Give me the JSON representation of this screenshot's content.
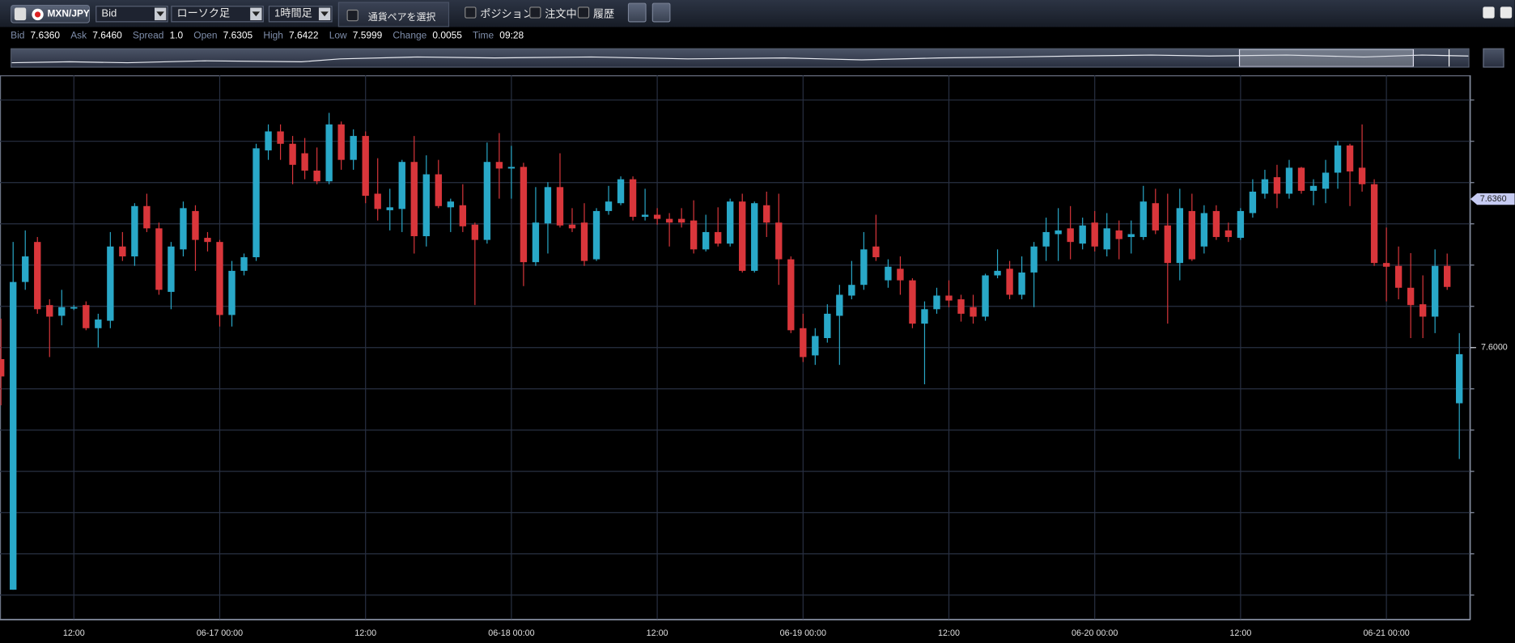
{
  "toolbar": {
    "pair": "MXN/JPY",
    "price_type": "Bid",
    "chart_type": "ローソク足",
    "period": "1時間足",
    "select_pair": "通貨ペアを選択",
    "checkboxes": [
      "ポジション",
      "注文中",
      "履歴"
    ]
  },
  "quote": [
    {
      "label": "Bid",
      "value": "7.6360"
    },
    {
      "label": "Ask",
      "value": "7.6460"
    },
    {
      "label": "Spread",
      "value": "1.0"
    },
    {
      "label": "Open",
      "value": "7.6305"
    },
    {
      "label": "High",
      "value": "7.6422"
    },
    {
      "label": "Low",
      "value": "7.5999"
    },
    {
      "label": "Change",
      "value": "0.0055"
    },
    {
      "label": "Time",
      "value": "09:28"
    }
  ],
  "chart_data": {
    "type": "candlestick",
    "up_color": "#29a8c8",
    "down_color": "#d9363b",
    "categories": [
      null,
      null,
      null,
      null,
      null,
      null,
      "12:00",
      null,
      null,
      null,
      null,
      null,
      null,
      null,
      null,
      null,
      null,
      null,
      "06-17 00:00",
      null,
      null,
      null,
      null,
      null,
      null,
      null,
      null,
      null,
      null,
      null,
      "12:00",
      null,
      null,
      null,
      null,
      null,
      null,
      null,
      null,
      null,
      null,
      null,
      "06-18 00:00",
      null,
      null,
      null,
      null,
      null,
      null,
      null,
      null,
      null,
      null,
      null,
      "12:00",
      null,
      null,
      null,
      null,
      null,
      null,
      null,
      null,
      null,
      null,
      null,
      "06-19 00:00",
      null,
      null,
      null,
      null,
      null,
      null,
      null,
      null,
      null,
      null,
      null,
      "12:00",
      null,
      null,
      null,
      null,
      null,
      null,
      null,
      null,
      null,
      null,
      null,
      "06-20 00:00",
      null,
      null,
      null,
      null,
      null,
      null,
      null,
      null,
      null,
      null,
      null,
      "12:00",
      null,
      null,
      null,
      null,
      null,
      null,
      null,
      null,
      null,
      null,
      null,
      "06-21 00:00",
      null,
      null,
      null,
      null,
      null,
      null
    ],
    "open": [
      7.5972,
      7.5413,
      7.6159,
      7.6256,
      7.6103,
      7.6077,
      7.6096,
      7.6103,
      7.6047,
      7.6065,
      7.6245,
      7.6221,
      7.6343,
      7.6289,
      7.6135,
      7.6238,
      7.6331,
      7.6266,
      7.6256,
      7.6079,
      7.6186,
      7.6219,
      7.6478,
      7.6524,
      7.6494,
      7.6471,
      7.6429,
      7.6403,
      7.6541,
      7.6455,
      7.6513,
      7.6373,
      7.6333,
      7.6336,
      7.645,
      7.627,
      7.642,
      7.634,
      7.6345,
      7.6298,
      7.6261,
      7.645,
      7.6434,
      7.6438,
      7.6207,
      7.6301,
      7.6389,
      7.6298,
      7.6303,
      7.6214,
      7.6331,
      7.635,
      7.6408,
      7.6317,
      7.6322,
      7.6312,
      7.6312,
      7.6308,
      7.6238,
      7.628,
      7.6252,
      7.6354,
      7.6186,
      7.6345,
      7.6303,
      7.6214,
      7.6047,
      7.5981,
      7.6023,
      7.6077,
      7.6126,
      7.6152,
      7.6245,
      7.6163,
      7.6191,
      7.6163,
      7.6058,
      7.6093,
      7.6126,
      7.6117,
      7.6098,
      7.6075,
      7.6175,
      7.6191,
      7.6128,
      7.6182,
      7.6245,
      7.6275,
      7.6289,
      7.6252,
      7.6303,
      7.6238,
      7.6284,
      7.6268,
      7.6268,
      7.635,
      7.6296,
      7.6205,
      7.6331,
      7.6245,
      7.6331,
      7.6284,
      7.6266,
      7.6326,
      7.6373,
      7.6413,
      7.6373,
      7.6436,
      7.638,
      7.6385,
      7.6424,
      7.649,
      7.6436,
      7.6396,
      7.6205,
      7.6198,
      7.6145,
      7.6105,
      7.6075,
      7.6198,
      7.5865
    ],
    "close": [
      7.593,
      7.6159,
      7.6221,
      7.6093,
      7.6075,
      7.6098,
      7.6098,
      7.6047,
      7.6068,
      7.6245,
      7.6221,
      7.6343,
      7.6289,
      7.614,
      7.6245,
      7.6338,
      7.6261,
      7.6256,
      7.6079,
      7.6186,
      7.6219,
      7.6483,
      7.6524,
      7.6494,
      7.6443,
      7.6429,
      7.6403,
      7.6541,
      7.6455,
      7.6513,
      7.6368,
      7.6336,
      7.634,
      7.645,
      7.627,
      7.642,
      7.6343,
      7.6354,
      7.6294,
      7.6261,
      7.645,
      7.6434,
      7.6438,
      7.6207,
      7.6303,
      7.6389,
      7.6296,
      7.6289,
      7.621,
      7.6331,
      7.6354,
      7.6408,
      7.6317,
      7.6322,
      7.6312,
      7.6303,
      7.6303,
      7.6238,
      7.628,
      7.6252,
      7.6354,
      7.6186,
      7.635,
      7.6303,
      7.6214,
      7.6042,
      7.5977,
      7.6028,
      7.6082,
      7.6128,
      7.6152,
      7.6238,
      7.6219,
      7.6196,
      7.6163,
      7.6058,
      7.6093,
      7.6126,
      7.6114,
      7.6082,
      7.6075,
      7.6175,
      7.6186,
      7.6128,
      7.6182,
      7.6245,
      7.628,
      7.6284,
      7.6256,
      7.6296,
      7.6245,
      7.6289,
      7.6263,
      7.6275,
      7.6354,
      7.6284,
      7.6205,
      7.6338,
      7.6214,
      7.6326,
      7.6268,
      7.6268,
      7.6331,
      7.6378,
      7.6408,
      7.6373,
      7.6436,
      7.638,
      7.6392,
      7.6424,
      7.649,
      7.6427,
      7.6396,
      7.6205,
      7.6196,
      7.6145,
      7.6103,
      7.6075,
      7.6198,
      7.6147,
      7.5984
    ],
    "high": [
      7.607,
      7.6256,
      7.6284,
      7.6268,
      7.6117,
      7.614,
      7.6103,
      7.6112,
      7.6082,
      7.628,
      7.628,
      7.635,
      7.6373,
      7.6303,
      7.6256,
      7.6354,
      7.6345,
      7.628,
      7.6261,
      7.621,
      7.6228,
      7.6494,
      7.6541,
      7.6541,
      7.6513,
      7.6508,
      7.6485,
      7.6569,
      7.6548,
      7.6529,
      7.6524,
      7.6459,
      7.6385,
      7.6455,
      7.6513,
      7.6466,
      7.6455,
      7.6361,
      7.6396,
      7.6303,
      7.6497,
      7.652,
      7.6489,
      7.6448,
      7.6389,
      7.6401,
      7.6471,
      7.6338,
      7.635,
      7.6338,
      7.6392,
      7.6415,
      7.6415,
      7.6385,
      7.6338,
      7.6326,
      7.6338,
      7.6357,
      7.6322,
      7.634,
      7.6361,
      7.6373,
      7.6354,
      7.6378,
      7.6373,
      7.6221,
      7.6082,
      7.6047,
      7.6105,
      7.6152,
      7.621,
      7.628,
      7.6322,
      7.6214,
      7.6221,
      7.6168,
      7.6112,
      7.6145,
      7.6163,
      7.6128,
      7.6128,
      7.6179,
      7.6238,
      7.621,
      7.6221,
      7.6256,
      7.6315,
      7.6338,
      7.6343,
      7.6315,
      7.6331,
      7.6326,
      7.6308,
      7.6308,
      7.6392,
      7.6385,
      7.6373,
      7.6385,
      7.6373,
      7.6345,
      7.6345,
      7.6303,
      7.6338,
      7.6408,
      7.6431,
      7.6443,
      7.6455,
      7.6438,
      7.6408,
      7.6455,
      7.6501,
      7.6494,
      7.6541,
      7.6408,
      7.6291,
      7.6245,
      7.6229,
      7.6175,
      7.6238,
      7.6228,
      7.6035
    ],
    "low": [
      7.586,
      7.5413,
      7.614,
      7.6082,
      7.5977,
      7.6054,
      7.6091,
      7.6042,
      7.6,
      7.6047,
      7.621,
      7.6198,
      7.628,
      7.6128,
      7.6093,
      7.6221,
      7.6186,
      7.6233,
      7.6051,
      7.6051,
      7.6175,
      7.621,
      7.6455,
      7.6455,
      7.6396,
      7.6408,
      7.6396,
      7.6396,
      7.6431,
      7.6431,
      7.635,
      7.6308,
      7.6284,
      7.628,
      7.6228,
      7.6245,
      7.6338,
      7.628,
      7.628,
      7.6103,
      7.6252,
      7.6361,
      7.6361,
      7.6149,
      7.6198,
      7.6228,
      7.6291,
      7.628,
      7.6198,
      7.621,
      7.6322,
      7.6345,
      7.6308,
      7.6308,
      7.6298,
      7.6245,
      7.6291,
      7.6228,
      7.6233,
      7.6245,
      7.6245,
      7.6182,
      7.6182,
      7.6268,
      7.6152,
      7.6035,
      7.5965,
      7.5958,
      7.6012,
      7.5958,
      7.6117,
      7.614,
      7.621,
      7.6145,
      7.6128,
      7.6047,
      7.5911,
      7.6082,
      7.6098,
      7.6063,
      7.6058,
      7.6065,
      7.6168,
      7.6117,
      7.6117,
      7.6098,
      7.621,
      7.621,
      7.6214,
      7.6238,
      7.6233,
      7.6221,
      7.6214,
      7.6228,
      7.6261,
      7.6275,
      7.6058,
      7.6163,
      7.621,
      7.6228,
      7.6261,
      7.6256,
      7.6261,
      7.6315,
      7.6361,
      7.6338,
      7.6361,
      7.6373,
      7.6345,
      7.635,
      7.6385,
      7.6343,
      7.6378,
      7.6198,
      7.6112,
      7.6117,
      7.6023,
      7.6023,
      7.6035,
      7.614,
      7.573
    ],
    "ylim": [
      7.534,
      7.666
    ],
    "yticks": [
      {
        "value": 7.6,
        "label": "7.6000"
      }
    ],
    "ygrid": [
      7.54,
      7.55,
      7.56,
      7.57,
      7.58,
      7.59,
      7.6,
      7.61,
      7.62,
      7.63,
      7.64,
      7.65,
      7.66
    ],
    "current_price": {
      "value": 7.636,
      "label": "7.6360"
    }
  }
}
